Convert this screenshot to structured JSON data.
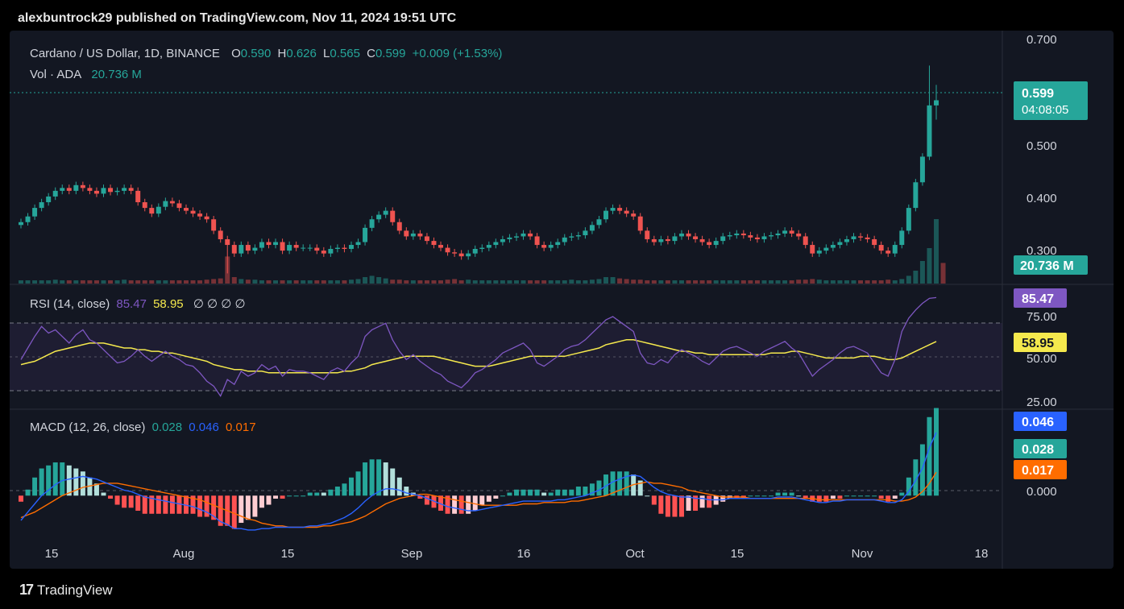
{
  "header": {
    "publisher": "alexbuntrock29 published on TradingView.com, Nov 11, 2024 19:51 UTC"
  },
  "legend": {
    "symbol": "Cardano / US Dollar, 1D, BINANCE",
    "o_label": "O",
    "o_value": "0.590",
    "h_label": "H",
    "h_value": "0.626",
    "l_label": "L",
    "l_value": "0.565",
    "c_label": "C",
    "c_value": "0.599",
    "change": "+0.009 (+1.53%)",
    "vol_label": "Vol · ADA",
    "vol_value": "20.736 M"
  },
  "rsi_legend": {
    "label": "RSI (14, close)",
    "value": "85.47",
    "ma": "58.95",
    "extras": "∅ ∅ ∅ ∅"
  },
  "macd_legend": {
    "label": "MACD (12, 26, close)",
    "hist": "0.028",
    "macd": "0.046",
    "signal": "0.017"
  },
  "badges": {
    "price": "0.599",
    "countdown": "04:08:05",
    "volume": "20.736 M",
    "rsi": "85.47",
    "rsi_ma": "58.95",
    "macd": "0.046",
    "hist": "0.028",
    "signal": "0.017"
  },
  "footer": {
    "logo": "17",
    "brand": "TradingView"
  },
  "colors": {
    "up": "#26a69a",
    "down": "#ef5350",
    "rsi": "#7e57c2",
    "rsi_ma": "#f5e94d",
    "macd": "#2962ff",
    "signal": "#ff6d00"
  },
  "chart_data": {
    "type": "candlestick",
    "price_axis": {
      "ticks": [
        "0.700",
        "0.500",
        "0.400",
        "0.300"
      ],
      "ylim": [
        0.28,
        0.71
      ]
    },
    "rsi_axis": {
      "ticks": [
        "75.00",
        "50.00",
        "25.00"
      ],
      "ylim": [
        19,
        92
      ]
    },
    "macd_axis": {
      "ticks": [
        "0.000"
      ],
      "ylim": [
        -0.028,
        0.06
      ]
    },
    "x_ticks": [
      "15",
      "Aug",
      "15",
      "Sep",
      "16",
      "Oct",
      "15",
      "Nov",
      "18"
    ],
    "x_tick_dates": [
      "2024-07-15",
      "2024-08-01",
      "2024-08-15",
      "2024-09-01",
      "2024-09-16",
      "2024-10-01",
      "2024-10-15",
      "2024-11-01",
      "2024-11-18"
    ],
    "closes": [
      0.385,
      0.395,
      0.41,
      0.42,
      0.43,
      0.44,
      0.445,
      0.44,
      0.45,
      0.445,
      0.44,
      0.435,
      0.445,
      0.438,
      0.44,
      0.445,
      0.44,
      0.42,
      0.41,
      0.4,
      0.412,
      0.422,
      0.418,
      0.41,
      0.405,
      0.4,
      0.395,
      0.39,
      0.37,
      0.355,
      0.345,
      0.33,
      0.345,
      0.335,
      0.34,
      0.35,
      0.345,
      0.35,
      0.335,
      0.345,
      0.34,
      0.34,
      0.34,
      0.335,
      0.33,
      0.338,
      0.34,
      0.338,
      0.345,
      0.35,
      0.375,
      0.39,
      0.398,
      0.405,
      0.385,
      0.37,
      0.36,
      0.365,
      0.36,
      0.352,
      0.345,
      0.34,
      0.332,
      0.33,
      0.325,
      0.33,
      0.338,
      0.34,
      0.345,
      0.35,
      0.355,
      0.358,
      0.36,
      0.365,
      0.36,
      0.345,
      0.34,
      0.345,
      0.35,
      0.358,
      0.36,
      0.362,
      0.37,
      0.38,
      0.39,
      0.405,
      0.41,
      0.405,
      0.4,
      0.395,
      0.37,
      0.355,
      0.35,
      0.355,
      0.352,
      0.36,
      0.365,
      0.36,
      0.355,
      0.35,
      0.345,
      0.352,
      0.36,
      0.362,
      0.365,
      0.362,
      0.358,
      0.355,
      0.36,
      0.362,
      0.365,
      0.37,
      0.365,
      0.36,
      0.345,
      0.33,
      0.335,
      0.34,
      0.345,
      0.35,
      0.355,
      0.36,
      0.358,
      0.355,
      0.345,
      0.335,
      0.33,
      0.345,
      0.37,
      0.41,
      0.455,
      0.5,
      0.59,
      0.599
    ],
    "opens": [
      0.38,
      0.385,
      0.395,
      0.41,
      0.42,
      0.43,
      0.44,
      0.445,
      0.44,
      0.45,
      0.445,
      0.44,
      0.435,
      0.445,
      0.438,
      0.44,
      0.445,
      0.44,
      0.42,
      0.41,
      0.4,
      0.412,
      0.422,
      0.418,
      0.41,
      0.405,
      0.4,
      0.395,
      0.39,
      0.37,
      0.355,
      0.345,
      0.33,
      0.345,
      0.335,
      0.34,
      0.35,
      0.345,
      0.35,
      0.335,
      0.345,
      0.34,
      0.34,
      0.34,
      0.335,
      0.33,
      0.338,
      0.34,
      0.338,
      0.345,
      0.35,
      0.375,
      0.39,
      0.398,
      0.405,
      0.385,
      0.37,
      0.36,
      0.365,
      0.36,
      0.352,
      0.345,
      0.34,
      0.332,
      0.33,
      0.325,
      0.33,
      0.338,
      0.34,
      0.345,
      0.35,
      0.355,
      0.358,
      0.36,
      0.365,
      0.36,
      0.345,
      0.34,
      0.345,
      0.35,
      0.358,
      0.36,
      0.362,
      0.37,
      0.38,
      0.39,
      0.405,
      0.41,
      0.405,
      0.4,
      0.395,
      0.37,
      0.355,
      0.35,
      0.355,
      0.352,
      0.36,
      0.365,
      0.36,
      0.355,
      0.35,
      0.345,
      0.352,
      0.36,
      0.362,
      0.365,
      0.362,
      0.358,
      0.355,
      0.36,
      0.362,
      0.365,
      0.37,
      0.365,
      0.36,
      0.345,
      0.33,
      0.335,
      0.34,
      0.345,
      0.35,
      0.355,
      0.36,
      0.358,
      0.355,
      0.345,
      0.335,
      0.33,
      0.345,
      0.37,
      0.41,
      0.455,
      0.5,
      0.59
    ],
    "highs_extra": {
      "0.626": 131,
      "0.66": 130
    },
    "volumes": [
      0.05,
      0.05,
      0.05,
      0.05,
      0.05,
      0.06,
      0.05,
      0.05,
      0.05,
      0.05,
      0.05,
      0.05,
      0.05,
      0.05,
      0.05,
      0.06,
      0.05,
      0.05,
      0.05,
      0.05,
      0.05,
      0.05,
      0.05,
      0.05,
      0.05,
      0.05,
      0.05,
      0.06,
      0.07,
      0.08,
      0.42,
      0.1,
      0.07,
      0.06,
      0.06,
      0.05,
      0.05,
      0.05,
      0.05,
      0.05,
      0.05,
      0.05,
      0.05,
      0.05,
      0.05,
      0.05,
      0.05,
      0.05,
      0.06,
      0.07,
      0.1,
      0.12,
      0.1,
      0.08,
      0.06,
      0.06,
      0.05,
      0.05,
      0.05,
      0.05,
      0.05,
      0.05,
      0.06,
      0.07,
      0.05,
      0.06,
      0.05,
      0.05,
      0.05,
      0.05,
      0.05,
      0.05,
      0.05,
      0.05,
      0.05,
      0.05,
      0.05,
      0.05,
      0.05,
      0.05,
      0.06,
      0.05,
      0.05,
      0.06,
      0.07,
      0.1,
      0.1,
      0.08,
      0.07,
      0.06,
      0.06,
      0.05,
      0.05,
      0.05,
      0.05,
      0.05,
      0.05,
      0.05,
      0.05,
      0.05,
      0.05,
      0.05,
      0.05,
      0.05,
      0.05,
      0.05,
      0.05,
      0.05,
      0.05,
      0.05,
      0.05,
      0.05,
      0.05,
      0.06,
      0.06,
      0.07,
      0.06,
      0.05,
      0.05,
      0.05,
      0.05,
      0.05,
      0.05,
      0.05,
      0.05,
      0.05,
      0.06,
      0.05,
      0.07,
      0.12,
      0.2,
      0.35,
      0.55,
      1.0,
      0.32
    ],
    "rsi": [
      48,
      55,
      62,
      68,
      64,
      66,
      62,
      58,
      63,
      66,
      60,
      58,
      54,
      50,
      46,
      47,
      50,
      54,
      50,
      47,
      50,
      53,
      50,
      48,
      45,
      44,
      40,
      35,
      32,
      26,
      36,
      33,
      41,
      38,
      40,
      45,
      42,
      44,
      38,
      42,
      41,
      41,
      40,
      38,
      36,
      41,
      43,
      41,
      46,
      50,
      62,
      66,
      68,
      70,
      60,
      53,
      48,
      51,
      47,
      44,
      41,
      39,
      35,
      33,
      31,
      35,
      40,
      42,
      45,
      48,
      52,
      54,
      56,
      58,
      54,
      46,
      44,
      47,
      50,
      54,
      56,
      57,
      60,
      64,
      68,
      72,
      74,
      71,
      68,
      65,
      52,
      46,
      45,
      48,
      46,
      51,
      54,
      52,
      50,
      47,
      45,
      49,
      53,
      55,
      56,
      54,
      52,
      50,
      53,
      55,
      57,
      59,
      55,
      52,
      45,
      38,
      42,
      45,
      48,
      52,
      55,
      56,
      54,
      52,
      46,
      40,
      38,
      48,
      65,
      73,
      78,
      82,
      85,
      85.47
    ],
    "rsi_ma": [
      45,
      46,
      47,
      49,
      51,
      53,
      54,
      55,
      56,
      57,
      58,
      58,
      58,
      57,
      56,
      55,
      55,
      54,
      54,
      53,
      53,
      52,
      52,
      51,
      50,
      49,
      48,
      47,
      45,
      44,
      43,
      42,
      42,
      41,
      41,
      41,
      40,
      40,
      40,
      40,
      40,
      40,
      40,
      40,
      40,
      40,
      40,
      41,
      41,
      42,
      43,
      45,
      46,
      47,
      48,
      49,
      50,
      50,
      50,
      50,
      50,
      49,
      48,
      47,
      46,
      45,
      44,
      44,
      44,
      45,
      46,
      47,
      48,
      49,
      50,
      50,
      50,
      50,
      50,
      50,
      51,
      52,
      53,
      54,
      55,
      57,
      58,
      59,
      60,
      60,
      59,
      58,
      57,
      56,
      55,
      54,
      53,
      53,
      52,
      52,
      51,
      51,
      51,
      51,
      51,
      51,
      51,
      51,
      51,
      52,
      52,
      52,
      53,
      53,
      52,
      51,
      50,
      49,
      49,
      49,
      49,
      49,
      50,
      50,
      50,
      49,
      48,
      48,
      49,
      51,
      53,
      55,
      57,
      58.95
    ],
    "macd": [
      -0.018,
      -0.012,
      -0.006,
      0.0,
      0.004,
      0.008,
      0.011,
      0.012,
      0.013,
      0.014,
      0.013,
      0.012,
      0.01,
      0.008,
      0.006,
      0.004,
      0.003,
      0.001,
      -0.001,
      -0.002,
      -0.003,
      -0.004,
      -0.005,
      -0.006,
      -0.007,
      -0.008,
      -0.01,
      -0.012,
      -0.015,
      -0.019,
      -0.021,
      -0.024,
      -0.024,
      -0.025,
      -0.025,
      -0.024,
      -0.024,
      -0.023,
      -0.023,
      -0.023,
      -0.023,
      -0.023,
      -0.022,
      -0.022,
      -0.021,
      -0.02,
      -0.018,
      -0.016,
      -0.013,
      -0.009,
      -0.004,
      0.0,
      0.003,
      0.005,
      0.005,
      0.004,
      0.002,
      0.001,
      0.0,
      -0.002,
      -0.004,
      -0.006,
      -0.008,
      -0.009,
      -0.01,
      -0.011,
      -0.011,
      -0.01,
      -0.009,
      -0.008,
      -0.007,
      -0.006,
      -0.005,
      -0.004,
      -0.004,
      -0.004,
      -0.004,
      -0.004,
      -0.003,
      -0.003,
      -0.002,
      -0.001,
      0.0,
      0.002,
      0.004,
      0.007,
      0.01,
      0.012,
      0.014,
      0.015,
      0.014,
      0.01,
      0.006,
      0.003,
      0.001,
      0.0,
      -0.001,
      -0.001,
      -0.002,
      -0.002,
      -0.003,
      -0.003,
      -0.003,
      -0.002,
      -0.002,
      -0.002,
      -0.002,
      -0.002,
      -0.002,
      -0.002,
      -0.001,
      -0.001,
      -0.001,
      -0.002,
      -0.003,
      -0.004,
      -0.005,
      -0.005,
      -0.004,
      -0.004,
      -0.003,
      -0.003,
      -0.003,
      -0.003,
      -0.003,
      -0.004,
      -0.005,
      -0.005,
      -0.003,
      0.003,
      0.011,
      0.02,
      0.035,
      0.046
    ],
    "signal": [
      -0.016,
      -0.014,
      -0.012,
      -0.009,
      -0.006,
      -0.003,
      0.0,
      0.002,
      0.004,
      0.006,
      0.007,
      0.008,
      0.009,
      0.009,
      0.009,
      0.008,
      0.007,
      0.006,
      0.005,
      0.004,
      0.003,
      0.002,
      0.001,
      0.0,
      -0.001,
      -0.002,
      -0.003,
      -0.005,
      -0.007,
      -0.009,
      -0.011,
      -0.013,
      -0.015,
      -0.017,
      -0.018,
      -0.02,
      -0.021,
      -0.022,
      -0.022,
      -0.023,
      -0.023,
      -0.023,
      -0.023,
      -0.023,
      -0.022,
      -0.022,
      -0.021,
      -0.02,
      -0.019,
      -0.017,
      -0.015,
      -0.012,
      -0.009,
      -0.006,
      -0.004,
      -0.002,
      -0.001,
      0.0,
      0.001,
      0.001,
      0.0,
      -0.001,
      -0.002,
      -0.003,
      -0.004,
      -0.005,
      -0.006,
      -0.007,
      -0.007,
      -0.007,
      -0.007,
      -0.007,
      -0.007,
      -0.006,
      -0.006,
      -0.006,
      -0.005,
      -0.005,
      -0.005,
      -0.005,
      -0.004,
      -0.004,
      -0.003,
      -0.002,
      -0.001,
      0.0,
      0.002,
      0.004,
      0.006,
      0.008,
      0.009,
      0.01,
      0.009,
      0.009,
      0.008,
      0.007,
      0.006,
      0.004,
      0.003,
      0.002,
      0.001,
      0.0,
      -0.001,
      -0.001,
      -0.001,
      -0.001,
      -0.002,
      -0.002,
      -0.002,
      -0.002,
      -0.002,
      -0.002,
      -0.002,
      -0.002,
      -0.002,
      -0.002,
      -0.003,
      -0.003,
      -0.003,
      -0.003,
      -0.003,
      -0.003,
      -0.003,
      -0.003,
      -0.003,
      -0.003,
      -0.003,
      -0.004,
      -0.004,
      -0.003,
      -0.001,
      0.003,
      0.009,
      0.017
    ]
  }
}
